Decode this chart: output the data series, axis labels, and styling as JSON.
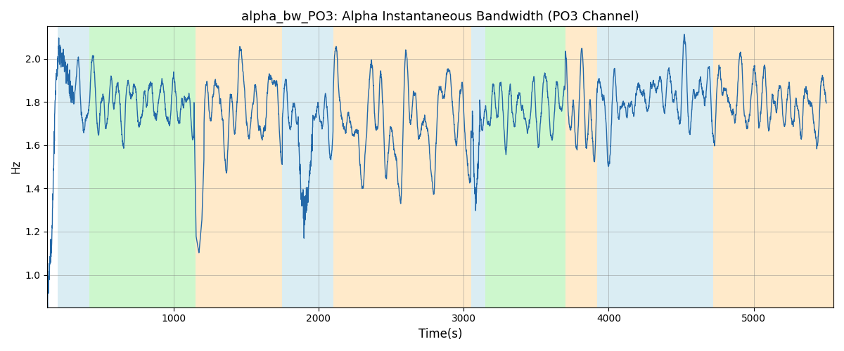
{
  "title": "alpha_bw_PO3: Alpha Instantaneous Bandwidth (PO3 Channel)",
  "xlabel": "Time(s)",
  "ylabel": "Hz",
  "xlim": [
    130,
    5550
  ],
  "ylim": [
    0.85,
    2.15
  ],
  "line_color": "#2368a8",
  "line_width": 1.0,
  "bg_regions": [
    {
      "xstart": 200,
      "xend": 420,
      "color": "#add8e6",
      "alpha": 0.45
    },
    {
      "xstart": 420,
      "xend": 1150,
      "color": "#90ee90",
      "alpha": 0.45
    },
    {
      "xstart": 1150,
      "xend": 1750,
      "color": "#ffd9a0",
      "alpha": 0.55
    },
    {
      "xstart": 1750,
      "xend": 2100,
      "color": "#add8e6",
      "alpha": 0.45
    },
    {
      "xstart": 2100,
      "xend": 3050,
      "color": "#ffd9a0",
      "alpha": 0.55
    },
    {
      "xstart": 3050,
      "xend": 3150,
      "color": "#add8e6",
      "alpha": 0.45
    },
    {
      "xstart": 3150,
      "xend": 3700,
      "color": "#90ee90",
      "alpha": 0.45
    },
    {
      "xstart": 3700,
      "xend": 3920,
      "color": "#ffd9a0",
      "alpha": 0.55
    },
    {
      "xstart": 3920,
      "xend": 4720,
      "color": "#add8e6",
      "alpha": 0.45
    },
    {
      "xstart": 4720,
      "xend": 5550,
      "color": "#ffd9a0",
      "alpha": 0.55
    }
  ],
  "yticks": [
    1.0,
    1.2,
    1.4,
    1.6,
    1.8,
    2.0
  ],
  "seed": 42,
  "base_value": 1.78,
  "title_fontsize": 13
}
